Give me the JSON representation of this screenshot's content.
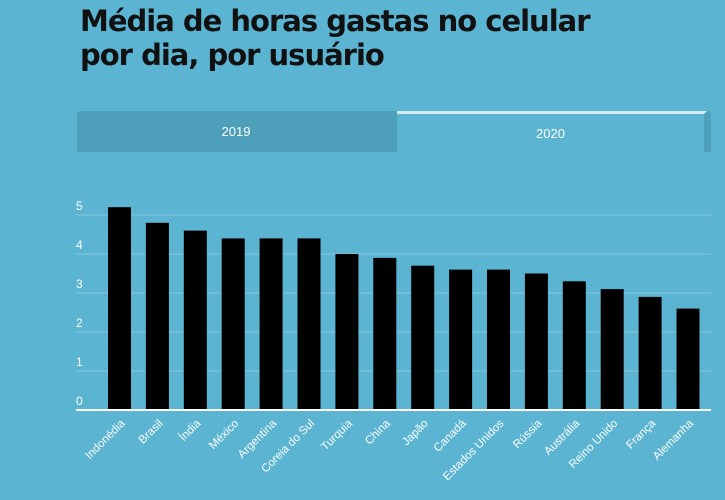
{
  "header": {
    "title_line1": "Média de horas gastas no celular",
    "title_line2": "por dia, por usuário"
  },
  "tabs": [
    {
      "label": "2019",
      "selected": false
    },
    {
      "label": "2020",
      "selected": true
    }
  ],
  "colors": {
    "background": "#5ab4d2",
    "bar": "#000000",
    "tab_inactive": "#4d9fba"
  },
  "chart_data": {
    "type": "bar",
    "title": "Média de horas gastas no celular por dia, por usuário",
    "categories": [
      "Indonédia",
      "Brasil",
      "Índia",
      "México",
      "Argentina",
      "Coreia do Sul",
      "Turquia",
      "China",
      "Japão",
      "Canadá",
      "Estados Unidos",
      "Rússia",
      "Austrália",
      "Reino Unido",
      "França",
      "Alemanha"
    ],
    "values": [
      5.2,
      4.8,
      4.6,
      4.4,
      4.4,
      4.4,
      4.0,
      3.9,
      3.7,
      3.6,
      3.6,
      3.5,
      3.3,
      3.1,
      2.9,
      2.6
    ],
    "yticks": [
      0,
      1,
      2,
      3,
      4,
      5
    ],
    "ylim": [
      0,
      5.6
    ],
    "grid": true,
    "xlabel": "",
    "ylabel": ""
  }
}
